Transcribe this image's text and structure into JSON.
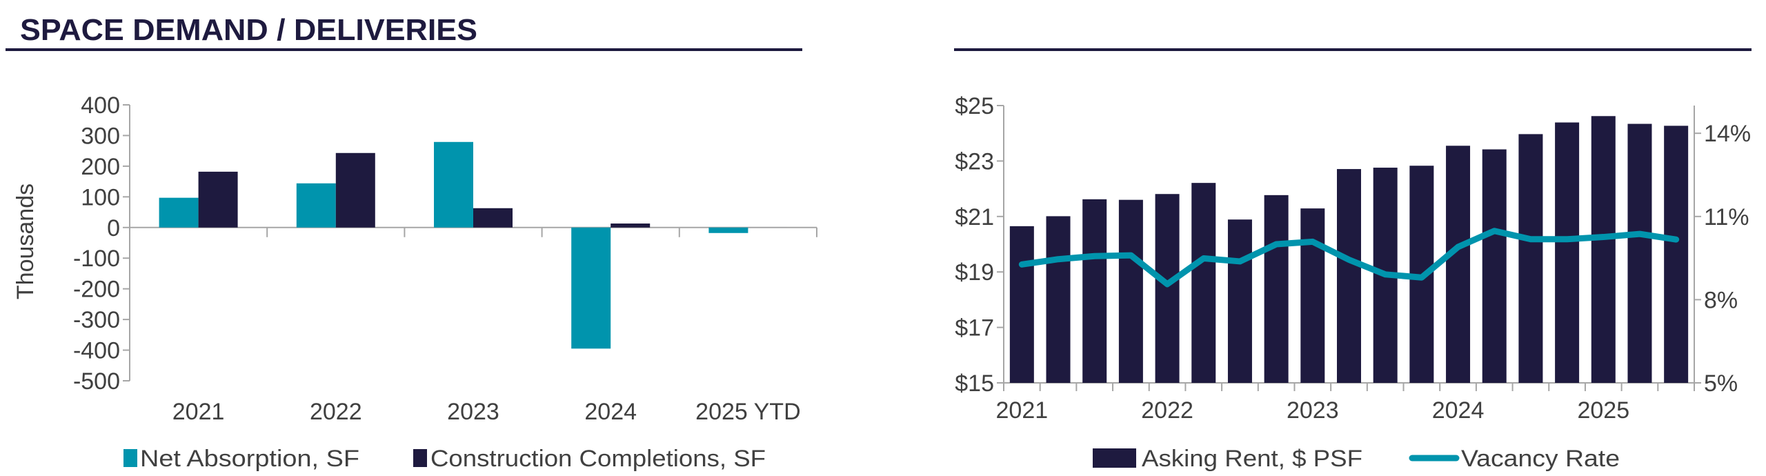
{
  "header": {
    "title": "SPACE DEMAND / DELIVERIES"
  },
  "colors": {
    "navy": "#1e1a3f",
    "teal": "#0094ad",
    "axis": "#a6a6a6",
    "text": "#404040"
  },
  "chart_data": [
    {
      "type": "bar",
      "ylabel": "Thousands",
      "ylim": [
        -500,
        400
      ],
      "yticks": [
        "400",
        "300",
        "200",
        "100",
        "0",
        "-100",
        "-200",
        "-300",
        "-400",
        "-500"
      ],
      "categories": [
        "2021",
        "2022",
        "2023",
        "2024",
        "2025 YTD"
      ],
      "legend_position": "bottom",
      "series": [
        {
          "name": "Net Absorption, SF",
          "color": "#0094ad",
          "values": [
            97,
            144,
            279,
            -395,
            -18
          ]
        },
        {
          "name": "Construction Completions, SF",
          "color": "#1e1a3f",
          "values": [
            182,
            243,
            63,
            13,
            0
          ]
        }
      ]
    },
    {
      "type": "bar+line",
      "categories": [
        "2021 Q1",
        "2021 Q2",
        "2021 Q3",
        "2021 Q4",
        "2022 Q1",
        "2022 Q2",
        "2022 Q3",
        "2022 Q4",
        "2023 Q1",
        "2023 Q2",
        "2023 Q3",
        "2023 Q4",
        "2024 Q1",
        "2024 Q2",
        "2024 Q3",
        "2024 Q4",
        "2025 Q1",
        "2025 Q2",
        "2025 Q3"
      ],
      "xtick_labels": [
        "2021",
        "2022",
        "2023",
        "2024",
        "2025"
      ],
      "ylim_left": [
        15,
        25
      ],
      "yticks_left": [
        "$25",
        "$23",
        "$21",
        "$19",
        "$17",
        "$15"
      ],
      "ylim_right": [
        5,
        15
      ],
      "yticks_right": [
        "14%",
        "11%",
        "8%",
        "5%"
      ],
      "legend_position": "bottom",
      "series": [
        {
          "name": "Asking Rent, $ PSF",
          "type": "bar",
          "axis": "left",
          "color": "#1e1a3f",
          "values": [
            20.65,
            21.01,
            21.62,
            21.6,
            21.81,
            22.21,
            20.89,
            21.77,
            21.29,
            22.71,
            22.76,
            22.83,
            23.55,
            23.42,
            23.97,
            24.39,
            24.62,
            24.34,
            24.27
          ]
        },
        {
          "name": "Vacancy Rate",
          "type": "line",
          "axis": "right",
          "color": "#0094ad",
          "values": [
            9.27,
            9.46,
            9.57,
            9.6,
            8.56,
            9.49,
            9.38,
            10.0,
            10.09,
            9.44,
            8.91,
            8.8,
            9.9,
            10.48,
            10.18,
            10.18,
            10.26,
            10.37,
            10.17
          ]
        }
      ]
    }
  ]
}
